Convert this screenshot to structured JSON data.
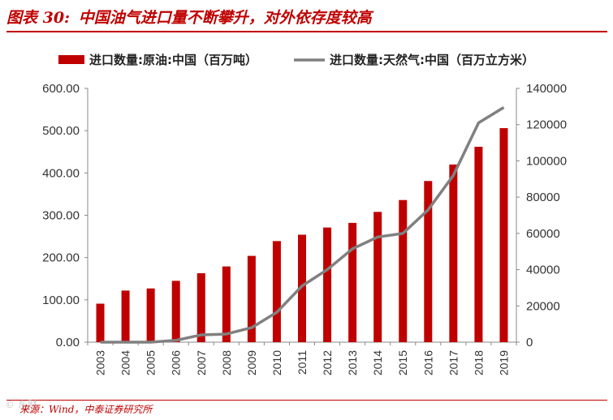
{
  "figure_title": {
    "label": "图表 30:",
    "text": "中国油气进口量不断攀升，对外依存度较高"
  },
  "source_text": "来源：Wind，中泰证券研究所",
  "watermark_text": "© 东财",
  "colors": {
    "accent": "#c00000",
    "bar": "#c00000",
    "line": "#808080",
    "axis": "#888888"
  },
  "chart_data": {
    "type": "bar",
    "categories": [
      "2003",
      "2004",
      "2005",
      "2006",
      "2007",
      "2008",
      "2009",
      "2010",
      "2011",
      "2012",
      "2013",
      "2014",
      "2015",
      "2016",
      "2017",
      "2018",
      "2019"
    ],
    "series": [
      {
        "name": "进口数量:原油:中国（百万吨）",
        "type": "bar",
        "axis": "left",
        "values": [
          91,
          122,
          127,
          145,
          163,
          179,
          204,
          239,
          254,
          271,
          282,
          308,
          336,
          381,
          420,
          462,
          506
        ]
      },
      {
        "name": "进口数量:天然气:中国（百万立方米）",
        "type": "line",
        "axis": "right",
        "values": [
          0,
          0,
          0,
          1000,
          4000,
          4500,
          8000,
          16500,
          31000,
          40000,
          51500,
          58000,
          60000,
          73000,
          92000,
          121000,
          129500
        ]
      }
    ],
    "y_left": {
      "min": 0,
      "max": 600,
      "ticks": [
        "0.00",
        "100.00",
        "200.00",
        "300.00",
        "400.00",
        "500.00",
        "600.00"
      ]
    },
    "y_right": {
      "min": 0,
      "max": 140000,
      "ticks": [
        "0",
        "20000",
        "40000",
        "60000",
        "80000",
        "100000",
        "120000",
        "140000"
      ]
    },
    "legend_position": "top"
  }
}
